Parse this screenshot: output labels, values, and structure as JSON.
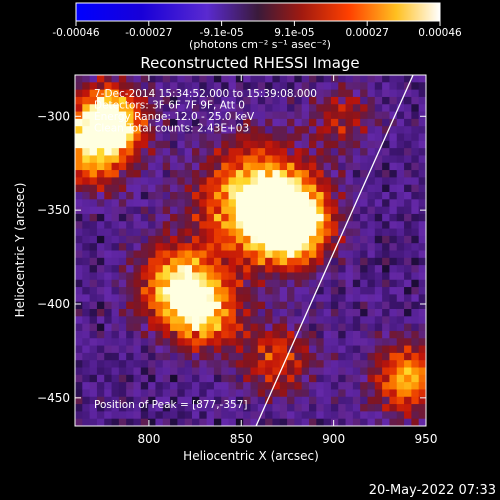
{
  "chart_data": {
    "type": "heatmap",
    "title": "Reconstructed RHESSI Image",
    "xlabel": "Heliocentric X (arcsec)",
    "ylabel": "Heliocentric Y (arcsec)",
    "xlim": [
      760,
      950
    ],
    "ylim": [
      -465,
      -278
    ],
    "x_ticks": [
      "800",
      "850",
      "900",
      "950"
    ],
    "y_ticks": [
      "-300",
      "-350",
      "-400",
      "-450"
    ],
    "colorbar": {
      "range": [
        -0.00046,
        0.00046
      ],
      "tick_labels": [
        "-0.00046",
        "-0.00027",
        "-9.1e-05",
        "9.1e-05",
        "0.00027",
        "0.00046"
      ],
      "unit_label": "(photons cm⁻² s⁻¹ asec⁻²)"
    },
    "annotations": [
      "7-Dec-2014 15:34:52.000 to 15:39:08.000",
      "Detectors: 3F 6F 7F 9F, Att 0",
      "Energy Range: 12.0 - 25.0 keV",
      "Clean     Total counts: 2.43E+03"
    ],
    "peak_label": "Position of Peak = [877,-357]",
    "peak_position": [
      877,
      -357
    ],
    "limb_line": {
      "x": [
        858,
        943
      ],
      "y": [
        -465,
        -278
      ]
    },
    "intensity_hotspots": [
      {
        "x": 877,
        "y": -357,
        "rel": 1.0,
        "spread": 14
      },
      {
        "x": 858,
        "y": -345,
        "rel": 0.8,
        "spread": 22
      },
      {
        "x": 770,
        "y": -315,
        "rel": 0.75,
        "spread": 16
      },
      {
        "x": 780,
        "y": -300,
        "rel": 0.7,
        "spread": 12
      },
      {
        "x": 815,
        "y": -390,
        "rel": 0.7,
        "spread": 16
      },
      {
        "x": 830,
        "y": -405,
        "rel": 0.6,
        "spread": 14
      },
      {
        "x": 940,
        "y": -440,
        "rel": 0.65,
        "spread": 14
      },
      {
        "x": 870,
        "y": -430,
        "rel": 0.45,
        "spread": 14
      },
      {
        "x": 905,
        "y": -300,
        "rel": 0.35,
        "spread": 12
      }
    ]
  },
  "footer": {
    "timestamp": "20-May-2022 07:33"
  }
}
